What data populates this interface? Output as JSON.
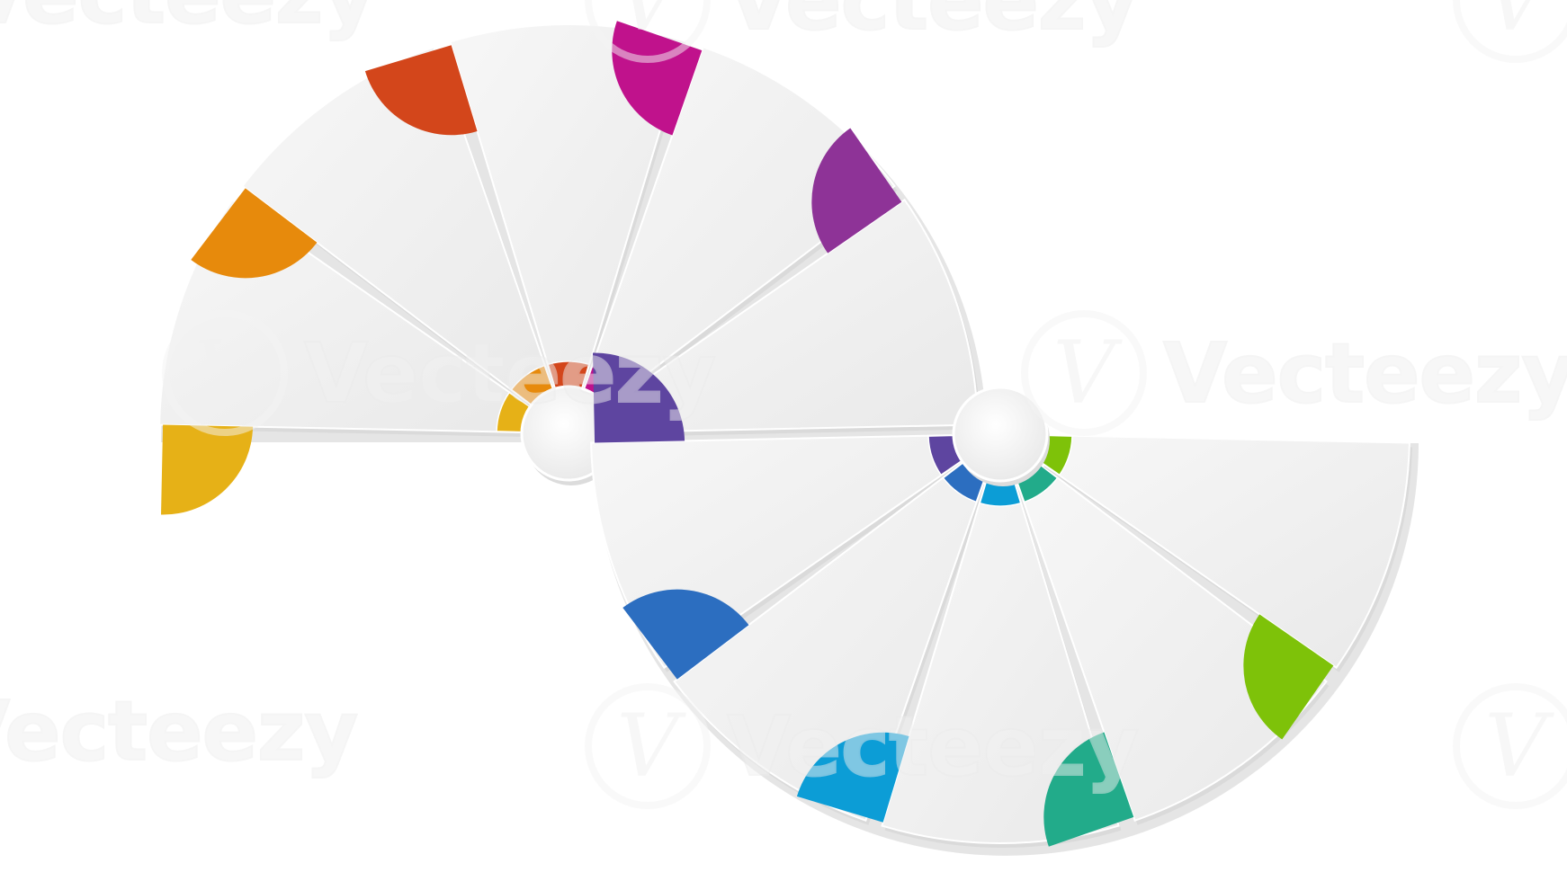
{
  "watermark": {
    "text": "Vecteezy",
    "logo_glyph": "V"
  },
  "wheels": [
    {
      "id": "top",
      "segments": [
        {
          "color": "#E6B117"
        },
        {
          "color": "#E78A0C"
        },
        {
          "color": "#D3461B"
        },
        {
          "color": "#C0128C"
        },
        {
          "color": "#8E3397"
        }
      ]
    },
    {
      "id": "bottom",
      "segments": [
        {
          "color": "#5E45A0"
        },
        {
          "color": "#2C6EC0"
        },
        {
          "color": "#0C9DD6"
        },
        {
          "color": "#22AB8A"
        },
        {
          "color": "#7EC209"
        }
      ]
    }
  ],
  "panel_color": "#F0F0F0",
  "panel_edge_color": "#DADADA",
  "hub_color": "#F7F7F7"
}
